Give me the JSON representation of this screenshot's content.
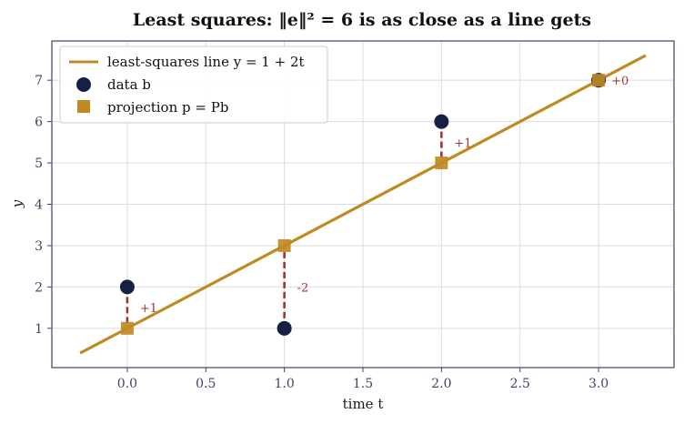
{
  "chart_data": {
    "type": "scatter",
    "title": "Least squares: ‖e‖² = 6 is as close as a line gets",
    "xlabel": "time t",
    "ylabel": "y",
    "xlim": [
      -0.48,
      3.48
    ],
    "ylim": [
      0.05,
      7.95
    ],
    "xticks": [
      0.0,
      0.5,
      1.0,
      1.5,
      2.0,
      2.5,
      3.0
    ],
    "xtick_labels": [
      "0.0",
      "0.5",
      "1.0",
      "1.5",
      "2.0",
      "2.5",
      "3.0"
    ],
    "yticks": [
      1,
      2,
      3,
      4,
      5,
      6,
      7
    ],
    "ytick_labels": [
      "1",
      "2",
      "3",
      "4",
      "5",
      "6",
      "7"
    ],
    "grid": true,
    "legend_position": "top-left",
    "fit_line": {
      "name": "least-squares line y = 1 + 2t",
      "intercept": 1,
      "slope": 2,
      "t_range": [
        -0.3,
        3.3
      ],
      "color": "#c08a23"
    },
    "series": [
      {
        "name": "data b",
        "marker": "circle",
        "color": "#152042",
        "x": [
          0,
          1,
          2,
          3
        ],
        "y": [
          2,
          1,
          6,
          7
        ]
      },
      {
        "name": "projection p = Pb",
        "marker": "square",
        "color": "#c08a23",
        "x": [
          0,
          1,
          2,
          3
        ],
        "y": [
          1,
          3,
          5,
          7
        ]
      }
    ],
    "residuals": {
      "color": "#a13535",
      "labels": [
        "+1",
        "-2",
        "+1",
        "+0"
      ]
    }
  }
}
